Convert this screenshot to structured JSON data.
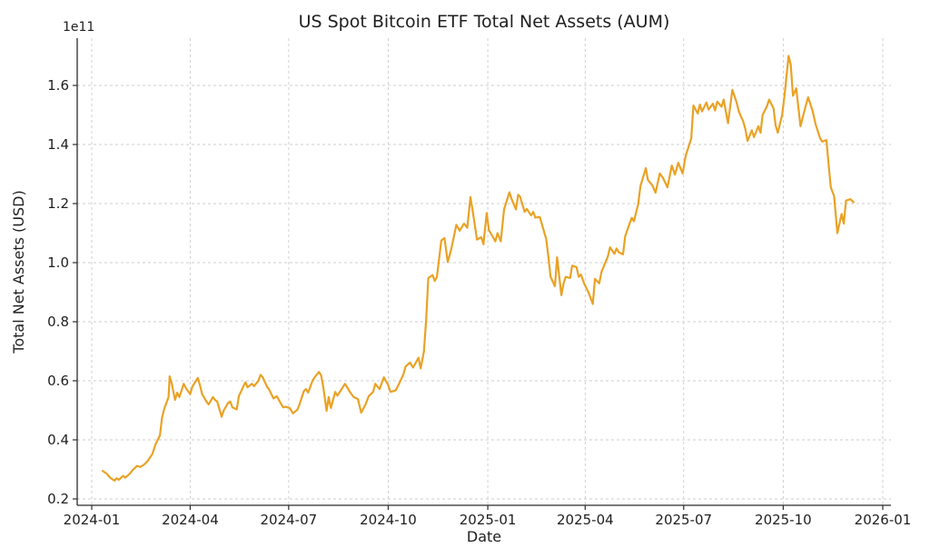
{
  "figure": {
    "background": "#ffffff",
    "text_color": "#1f1f1f",
    "spine_color": "#2b2b2b",
    "grid_color": "#cccccc"
  },
  "chart_data": {
    "type": "line",
    "title": "US Spot Bitcoin ETF Total Net Assets (AUM)",
    "xlabel": "Date",
    "ylabel": "Total Net Assets (USD)",
    "y_offset_label": "1e11",
    "y_unit": "values are in units of 1e11 USD",
    "line_color": "#E9A225",
    "line_width": 2.2,
    "grid": true,
    "grid_style": "dashed",
    "legend": "none",
    "x_ticks": [
      {
        "label": "2024-01",
        "date": "2024-01-01"
      },
      {
        "label": "2024-04",
        "date": "2024-04-01"
      },
      {
        "label": "2024-07",
        "date": "2024-07-01"
      },
      {
        "label": "2024-10",
        "date": "2024-10-01"
      },
      {
        "label": "2025-01",
        "date": "2025-01-01"
      },
      {
        "label": "2025-04",
        "date": "2025-04-01"
      },
      {
        "label": "2025-07",
        "date": "2025-07-01"
      },
      {
        "label": "2025-10",
        "date": "2025-10-01"
      },
      {
        "label": "2026-01",
        "date": "2026-01-01"
      }
    ],
    "y_ticks": [
      0.2,
      0.4,
      0.6,
      0.8,
      1.0,
      1.2,
      1.4,
      1.6
    ],
    "ylim": [
      0.178,
      1.76
    ],
    "xlim": [
      "2023-12-18",
      "2026-01-08"
    ],
    "series": [
      {
        "name": "US Spot Bitcoin ETF Total Net Assets",
        "points": [
          [
            "2024-01-11",
            0.295
          ],
          [
            "2024-01-15",
            0.285
          ],
          [
            "2024-01-18",
            0.272
          ],
          [
            "2024-01-22",
            0.262
          ],
          [
            "2024-01-24",
            0.27
          ],
          [
            "2024-01-26",
            0.265
          ],
          [
            "2024-01-30",
            0.278
          ],
          [
            "2024-02-01",
            0.272
          ],
          [
            "2024-02-05",
            0.285
          ],
          [
            "2024-02-08",
            0.298
          ],
          [
            "2024-02-12",
            0.312
          ],
          [
            "2024-02-15",
            0.308
          ],
          [
            "2024-02-19",
            0.318
          ],
          [
            "2024-02-22",
            0.33
          ],
          [
            "2024-02-26",
            0.352
          ],
          [
            "2024-02-29",
            0.385
          ],
          [
            "2024-03-04",
            0.415
          ],
          [
            "2024-03-06",
            0.475
          ],
          [
            "2024-03-08",
            0.505
          ],
          [
            "2024-03-12",
            0.545
          ],
          [
            "2024-03-13",
            0.615
          ],
          [
            "2024-03-15",
            0.59
          ],
          [
            "2024-03-18",
            0.535
          ],
          [
            "2024-03-20",
            0.56
          ],
          [
            "2024-03-22",
            0.545
          ],
          [
            "2024-03-26",
            0.59
          ],
          [
            "2024-03-28",
            0.575
          ],
          [
            "2024-04-01",
            0.555
          ],
          [
            "2024-04-03",
            0.58
          ],
          [
            "2024-04-08",
            0.61
          ],
          [
            "2024-04-10",
            0.585
          ],
          [
            "2024-04-12",
            0.555
          ],
          [
            "2024-04-16",
            0.53
          ],
          [
            "2024-04-18",
            0.52
          ],
          [
            "2024-04-22",
            0.545
          ],
          [
            "2024-04-24",
            0.535
          ],
          [
            "2024-04-26",
            0.53
          ],
          [
            "2024-04-30",
            0.478
          ],
          [
            "2024-05-02",
            0.5
          ],
          [
            "2024-05-06",
            0.525
          ],
          [
            "2024-05-08",
            0.53
          ],
          [
            "2024-05-10",
            0.51
          ],
          [
            "2024-05-14",
            0.503
          ],
          [
            "2024-05-16",
            0.548
          ],
          [
            "2024-05-20",
            0.58
          ],
          [
            "2024-05-22",
            0.595
          ],
          [
            "2024-05-24",
            0.578
          ],
          [
            "2024-05-28",
            0.59
          ],
          [
            "2024-05-30",
            0.582
          ],
          [
            "2024-06-03",
            0.6
          ],
          [
            "2024-06-05",
            0.62
          ],
          [
            "2024-06-07",
            0.612
          ],
          [
            "2024-06-11",
            0.58
          ],
          [
            "2024-06-13",
            0.57
          ],
          [
            "2024-06-17",
            0.54
          ],
          [
            "2024-06-20",
            0.548
          ],
          [
            "2024-06-24",
            0.522
          ],
          [
            "2024-06-26",
            0.51
          ],
          [
            "2024-06-28",
            0.512
          ],
          [
            "2024-07-02",
            0.508
          ],
          [
            "2024-07-05",
            0.49
          ],
          [
            "2024-07-09",
            0.502
          ],
          [
            "2024-07-11",
            0.52
          ],
          [
            "2024-07-15",
            0.565
          ],
          [
            "2024-07-17",
            0.572
          ],
          [
            "2024-07-19",
            0.56
          ],
          [
            "2024-07-23",
            0.6
          ],
          [
            "2024-07-25",
            0.612
          ],
          [
            "2024-07-29",
            0.63
          ],
          [
            "2024-07-31",
            0.618
          ],
          [
            "2024-08-02",
            0.578
          ],
          [
            "2024-08-05",
            0.498
          ],
          [
            "2024-08-07",
            0.545
          ],
          [
            "2024-08-09",
            0.508
          ],
          [
            "2024-08-13",
            0.562
          ],
          [
            "2024-08-15",
            0.55
          ],
          [
            "2024-08-19",
            0.572
          ],
          [
            "2024-08-22",
            0.59
          ],
          [
            "2024-08-27",
            0.56
          ],
          [
            "2024-08-30",
            0.545
          ],
          [
            "2024-09-03",
            0.538
          ],
          [
            "2024-09-06",
            0.492
          ],
          [
            "2024-09-10",
            0.52
          ],
          [
            "2024-09-13",
            0.548
          ],
          [
            "2024-09-17",
            0.562
          ],
          [
            "2024-09-19",
            0.59
          ],
          [
            "2024-09-23",
            0.572
          ],
          [
            "2024-09-27",
            0.612
          ],
          [
            "2024-10-01",
            0.585
          ],
          [
            "2024-10-03",
            0.562
          ],
          [
            "2024-10-08",
            0.568
          ],
          [
            "2024-10-11",
            0.59
          ],
          [
            "2024-10-15",
            0.622
          ],
          [
            "2024-10-17",
            0.648
          ],
          [
            "2024-10-21",
            0.662
          ],
          [
            "2024-10-24",
            0.645
          ],
          [
            "2024-10-29",
            0.678
          ],
          [
            "2024-10-31",
            0.642
          ],
          [
            "2024-11-03",
            0.7
          ],
          [
            "2024-11-05",
            0.806
          ],
          [
            "2024-11-07",
            0.948
          ],
          [
            "2024-11-11",
            0.958
          ],
          [
            "2024-11-13",
            0.938
          ],
          [
            "2024-11-15",
            0.952
          ],
          [
            "2024-11-19",
            1.075
          ],
          [
            "2024-11-22",
            1.083
          ],
          [
            "2024-11-25",
            1.002
          ],
          [
            "2024-11-28",
            1.042
          ],
          [
            "2024-12-03",
            1.128
          ],
          [
            "2024-12-06",
            1.108
          ],
          [
            "2024-12-10",
            1.132
          ],
          [
            "2024-12-13",
            1.118
          ],
          [
            "2024-12-16",
            1.222
          ],
          [
            "2024-12-19",
            1.152
          ],
          [
            "2024-12-22",
            1.078
          ],
          [
            "2024-12-26",
            1.086
          ],
          [
            "2024-12-28",
            1.062
          ],
          [
            "2024-12-31",
            1.168
          ],
          [
            "2025-01-02",
            1.11
          ],
          [
            "2025-01-06",
            1.085
          ],
          [
            "2025-01-08",
            1.072
          ],
          [
            "2025-01-10",
            1.1
          ],
          [
            "2025-01-13",
            1.072
          ],
          [
            "2025-01-16",
            1.18
          ],
          [
            "2025-01-21",
            1.238
          ],
          [
            "2025-01-23",
            1.215
          ],
          [
            "2025-01-27",
            1.18
          ],
          [
            "2025-01-29",
            1.23
          ],
          [
            "2025-01-31",
            1.222
          ],
          [
            "2025-02-04",
            1.172
          ],
          [
            "2025-02-06",
            1.182
          ],
          [
            "2025-02-10",
            1.16
          ],
          [
            "2025-02-12",
            1.172
          ],
          [
            "2025-02-14",
            1.152
          ],
          [
            "2025-02-18",
            1.155
          ],
          [
            "2025-02-20",
            1.13
          ],
          [
            "2025-02-24",
            1.08
          ],
          [
            "2025-02-26",
            1.02
          ],
          [
            "2025-02-28",
            0.952
          ],
          [
            "2025-03-04",
            0.92
          ],
          [
            "2025-03-06",
            1.018
          ],
          [
            "2025-03-10",
            0.89
          ],
          [
            "2025-03-12",
            0.93
          ],
          [
            "2025-03-14",
            0.952
          ],
          [
            "2025-03-18",
            0.948
          ],
          [
            "2025-03-20",
            0.99
          ],
          [
            "2025-03-24",
            0.985
          ],
          [
            "2025-03-26",
            0.952
          ],
          [
            "2025-03-28",
            0.96
          ],
          [
            "2025-03-31",
            0.93
          ],
          [
            "2025-04-02",
            0.915
          ],
          [
            "2025-04-04",
            0.9
          ],
          [
            "2025-04-08",
            0.86
          ],
          [
            "2025-04-10",
            0.945
          ],
          [
            "2025-04-14",
            0.93
          ],
          [
            "2025-04-16",
            0.968
          ],
          [
            "2025-04-22",
            1.022
          ],
          [
            "2025-04-24",
            1.052
          ],
          [
            "2025-04-28",
            1.03
          ],
          [
            "2025-04-30",
            1.048
          ],
          [
            "2025-05-02",
            1.035
          ],
          [
            "2025-05-06",
            1.028
          ],
          [
            "2025-05-08",
            1.09
          ],
          [
            "2025-05-12",
            1.132
          ],
          [
            "2025-05-14",
            1.152
          ],
          [
            "2025-05-16",
            1.14
          ],
          [
            "2025-05-20",
            1.198
          ],
          [
            "2025-05-22",
            1.258
          ],
          [
            "2025-05-27",
            1.32
          ],
          [
            "2025-05-29",
            1.28
          ],
          [
            "2025-06-02",
            1.262
          ],
          [
            "2025-06-05",
            1.237
          ],
          [
            "2025-06-09",
            1.302
          ],
          [
            "2025-06-12",
            1.286
          ],
          [
            "2025-06-16",
            1.255
          ],
          [
            "2025-06-20",
            1.329
          ],
          [
            "2025-06-23",
            1.298
          ],
          [
            "2025-06-26",
            1.338
          ],
          [
            "2025-06-30",
            1.302
          ],
          [
            "2025-07-03",
            1.363
          ],
          [
            "2025-07-08",
            1.42
          ],
          [
            "2025-07-10",
            1.532
          ],
          [
            "2025-07-14",
            1.505
          ],
          [
            "2025-07-16",
            1.535
          ],
          [
            "2025-07-18",
            1.512
          ],
          [
            "2025-07-22",
            1.542
          ],
          [
            "2025-07-24",
            1.518
          ],
          [
            "2025-07-28",
            1.538
          ],
          [
            "2025-07-30",
            1.515
          ],
          [
            "2025-08-01",
            1.545
          ],
          [
            "2025-08-05",
            1.528
          ],
          [
            "2025-08-07",
            1.552
          ],
          [
            "2025-08-11",
            1.472
          ],
          [
            "2025-08-13",
            1.528
          ],
          [
            "2025-08-15",
            1.585
          ],
          [
            "2025-08-19",
            1.542
          ],
          [
            "2025-08-21",
            1.512
          ],
          [
            "2025-08-25",
            1.478
          ],
          [
            "2025-08-27",
            1.452
          ],
          [
            "2025-08-29",
            1.412
          ],
          [
            "2025-09-02",
            1.448
          ],
          [
            "2025-09-04",
            1.425
          ],
          [
            "2025-09-08",
            1.462
          ],
          [
            "2025-09-10",
            1.44
          ],
          [
            "2025-09-12",
            1.5
          ],
          [
            "2025-09-16",
            1.53
          ],
          [
            "2025-09-18",
            1.552
          ],
          [
            "2025-09-22",
            1.522
          ],
          [
            "2025-09-24",
            1.465
          ],
          [
            "2025-09-26",
            1.44
          ],
          [
            "2025-09-30",
            1.5
          ],
          [
            "2025-10-02",
            1.56
          ],
          [
            "2025-10-06",
            1.7
          ],
          [
            "2025-10-08",
            1.67
          ],
          [
            "2025-10-10",
            1.565
          ],
          [
            "2025-10-13",
            1.59
          ],
          [
            "2025-10-17",
            1.462
          ],
          [
            "2025-10-21",
            1.52
          ],
          [
            "2025-10-24",
            1.56
          ],
          [
            "2025-10-28",
            1.515
          ],
          [
            "2025-10-31",
            1.468
          ],
          [
            "2025-11-04",
            1.422
          ],
          [
            "2025-11-06",
            1.41
          ],
          [
            "2025-11-10",
            1.415
          ],
          [
            "2025-11-12",
            1.33
          ],
          [
            "2025-11-14",
            1.255
          ],
          [
            "2025-11-17",
            1.225
          ],
          [
            "2025-11-20",
            1.1
          ],
          [
            "2025-11-24",
            1.165
          ],
          [
            "2025-11-26",
            1.132
          ],
          [
            "2025-11-28",
            1.21
          ],
          [
            "2025-12-02",
            1.215
          ],
          [
            "2025-12-05",
            1.205
          ]
        ]
      }
    ]
  }
}
